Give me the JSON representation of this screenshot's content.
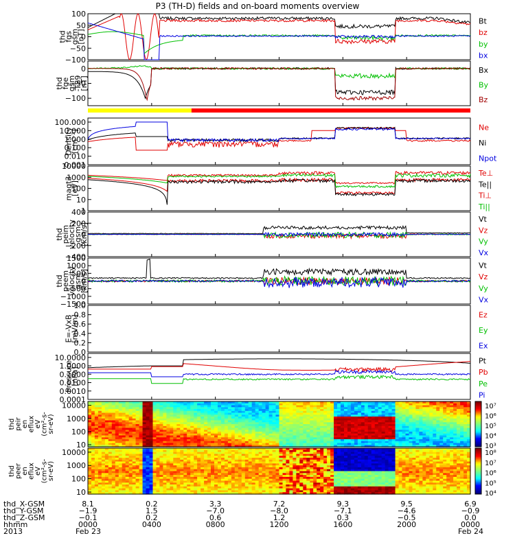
{
  "title": "P3 (TH-D) fields and on-board moments overview",
  "chart_data": {
    "type": "line",
    "panels": [
      {
        "ylabel": [
          "thd",
          "fgs",
          "gsm",
          "[nT]"
        ],
        "yscale": "linear",
        "ylim": [
          -100,
          100
        ],
        "yticks": [
          "100",
          "50",
          "0",
          "−50",
          "−100"
        ],
        "legend": [
          {
            "label": "Bt",
            "color": "#000000"
          },
          {
            "label": "bz",
            "color": "#e00000"
          },
          {
            "label": "by",
            "color": "#00c000"
          },
          {
            "label": "bx",
            "color": "#0000e0"
          }
        ]
      },
      {
        "ylabel": [
          "thd",
          "fge",
          "gsm",
          "-T89",
          "[nT]"
        ],
        "yscale": "linear",
        "ylim": [
          -125,
          25
        ],
        "yticks": [
          "0",
          "−50",
          "−100"
        ],
        "legend": [
          {
            "label": "Bx",
            "color": "#000000"
          },
          {
            "label": "By",
            "color": "#00c000"
          },
          {
            "label": "Bz",
            "color": "#a00000"
          }
        ]
      },
      {
        "ylabel": [
          "Density",
          "[cm⁻³]"
        ],
        "yscale": "log",
        "ylim": [
          0.001,
          300
        ],
        "yticks": [
          "100.000",
          "10.000",
          "1.000",
          "0.100",
          "0.010",
          "0.001"
        ],
        "legend": [
          {
            "label": "Ne",
            "color": "#e00000"
          },
          {
            "label": "Ni",
            "color": "#000000"
          },
          {
            "label": "Npot",
            "color": "#0000e0"
          }
        ]
      },
      {
        "ylabel": [
          "magt3",
          "[eV]"
        ],
        "yscale": "log",
        "ylim": [
          1,
          10000
        ],
        "yticks": [
          "10000",
          "1000",
          "100",
          "10",
          "1"
        ],
        "legend": [
          {
            "label": "Te⊥",
            "color": "#e00000"
          },
          {
            "label": "Te||",
            "color": "#000000"
          },
          {
            "label": "Ti⊥",
            "color": "#e00000"
          },
          {
            "label": "Ti||",
            "color": "#00c000"
          }
        ]
      },
      {
        "ylabel": [
          "thd",
          "peim",
          "velocity",
          "gsm",
          "[km/s]"
        ],
        "yscale": "linear",
        "ylim": [
          -400,
          400
        ],
        "yticks": [
          "400",
          "200",
          "0",
          "−200",
          "−400"
        ],
        "legend": [
          {
            "label": "Vt",
            "color": "#000000"
          },
          {
            "label": "Vz",
            "color": "#e00000"
          },
          {
            "label": "Vy",
            "color": "#00c000"
          },
          {
            "label": "Vx",
            "color": "#0000e0"
          }
        ]
      },
      {
        "ylabel": [
          "thd",
          "peem",
          "velocity",
          "gsm",
          "[km/s]"
        ],
        "yscale": "linear",
        "ylim": [
          -1500,
          1500
        ],
        "yticks": [
          "1500",
          "1000",
          "500",
          "0",
          "−500",
          "−1000",
          "−1500"
        ],
        "legend": [
          {
            "label": "Vt",
            "color": "#000000"
          },
          {
            "label": "Vz",
            "color": "#e00000"
          },
          {
            "label": "Vy",
            "color": "#00c000"
          },
          {
            "label": "Vx",
            "color": "#0000e0"
          }
        ]
      },
      {
        "ylabel": [
          "E=-VxB",
          "[mV/m]"
        ],
        "yscale": "linear",
        "ylim": [
          0,
          1
        ],
        "yticks": [
          "1.0",
          "0.8",
          "0.6",
          "0.4",
          "0.2",
          "0.0"
        ],
        "legend": [
          {
            "label": "Ez",
            "color": "#e00000"
          },
          {
            "label": "Ey",
            "color": "#00c000"
          },
          {
            "label": "Ex",
            "color": "#0000e0"
          }
        ]
      },
      {
        "ylabel": [
          "Pressure",
          "[nPa]"
        ],
        "yscale": "log",
        "ylim": [
          0.0001,
          30
        ],
        "yticks": [
          "10.0000",
          "1.0000",
          "0.1000",
          "0.0100",
          "0.0010",
          "0.0001"
        ],
        "legend": [
          {
            "label": "Pt",
            "color": "#000000"
          },
          {
            "label": "Pb",
            "color": "#e00000"
          },
          {
            "label": "Pe",
            "color": "#00c000"
          },
          {
            "label": "Pi",
            "color": "#0000e0"
          }
        ]
      }
    ],
    "spectrograms": [
      {
        "ylabel": [
          "thd",
          "peir",
          "en",
          "eflux",
          "eV",
          "(cm²-s-",
          "sr-eV)"
        ],
        "yscale": "log",
        "ylim": [
          7,
          20000
        ],
        "yticks": [
          "10000",
          "1000",
          "100",
          "10"
        ],
        "colorbar_ticks": [
          "10⁷",
          "10⁶",
          "10⁵",
          "10⁴",
          "10³"
        ]
      },
      {
        "ylabel": [
          "thd",
          "peer",
          "en",
          "eflux",
          "eV",
          "(cm²-s-",
          "sr-eV)"
        ],
        "yscale": "log",
        "ylim": [
          7,
          20000
        ],
        "yticks": [
          "10000",
          "1000",
          "100",
          "10"
        ],
        "colorbar_ticks": [
          "10⁸",
          "10⁷",
          "10⁶",
          "10⁵",
          "10⁴"
        ]
      }
    ],
    "x_axis": {
      "unit": "hhmm",
      "range_hours": [
        0,
        24
      ],
      "ticks": [
        0,
        4,
        8,
        12,
        16,
        20,
        24
      ],
      "tick_labels": [
        "0000",
        "0400",
        "0800",
        "1200",
        "1600",
        "2000",
        "0000"
      ],
      "row_labels": [
        "thd_X-GSM",
        "thd_Y-GSM",
        "thd_Z-GSM",
        "hhmm",
        "2013"
      ],
      "rows": [
        [
          "8.1",
          "0.2",
          "3.3",
          "7.2",
          "9.3",
          "9.5",
          "6.9"
        ],
        [
          "−1.9",
          "1.5",
          "−7.0",
          "−8.0",
          "−7.1",
          "−4.6",
          "−0.9"
        ],
        [
          "−0.1",
          "0.2",
          "0.6",
          "1.2",
          "0.3",
          "−0.5",
          "0.0"
        ]
      ],
      "date_start": "Feb 23",
      "date_end": "Feb 24"
    }
  }
}
